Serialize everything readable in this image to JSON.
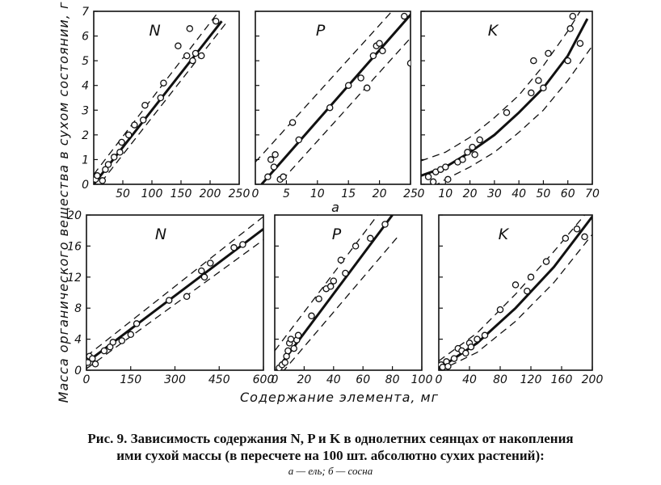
{
  "figure": {
    "ylabel": "Масса органического вещества в сухом состоянии, г",
    "xlabel": "Содержание элемента, мг",
    "row_labels": [
      "a"
    ]
  },
  "caption": {
    "line1": "Рис. 9. Зависимость содержания N, P и K в однолетних сеянцах от накопления",
    "line2": "ими сухой массы (в пересчете на 100 шт. абсолютно сухих растений):",
    "line3": "а — ель;  б — сосна"
  },
  "chart_data": [
    {
      "type": "scatter",
      "panel": "N",
      "row": "a",
      "xlim": [
        0,
        250
      ],
      "ylim": [
        0,
        7
      ],
      "xticks": [
        50,
        100,
        150,
        200,
        250
      ],
      "xtick_labels": [
        "50",
        "100",
        "150",
        "200",
        "250"
      ],
      "yticks": [
        0,
        1,
        2,
        3,
        4,
        5,
        6,
        7
      ],
      "points": [
        [
          3,
          0.2
        ],
        [
          6,
          0.35
        ],
        [
          15,
          0.15
        ],
        [
          20,
          0.6
        ],
        [
          25,
          0.8
        ],
        [
          35,
          1.1
        ],
        [
          45,
          1.3
        ],
        [
          48,
          1.7
        ],
        [
          60,
          2.0
        ],
        [
          70,
          2.4
        ],
        [
          85,
          2.6
        ],
        [
          88,
          3.2
        ],
        [
          115,
          3.5
        ],
        [
          120,
          4.1
        ],
        [
          145,
          5.6
        ],
        [
          160,
          5.2
        ],
        [
          165,
          6.3
        ],
        [
          170,
          5.0
        ],
        [
          175,
          5.3
        ],
        [
          185,
          5.2
        ],
        [
          210,
          6.6
        ]
      ],
      "fit": [
        [
          0,
          0
        ],
        [
          220,
          6.6
        ]
      ],
      "band": {
        "upper": [
          [
            0,
            0.4
          ],
          [
            215,
            7
          ]
        ],
        "lower": [
          [
            0,
            -0.3
          ],
          [
            230,
            6.6
          ]
        ]
      }
    },
    {
      "type": "scatter",
      "panel": "P",
      "row": "a",
      "xlim": [
        0,
        25
      ],
      "ylim": [
        0,
        7
      ],
      "xticks": [
        0,
        5,
        10,
        15,
        20,
        25
      ],
      "xtick_labels": [
        "0",
        "5",
        "10",
        "15",
        "20",
        "25"
      ],
      "yticks": [
        0,
        1,
        2,
        3,
        4,
        5,
        6,
        7
      ],
      "points": [
        [
          2,
          0.3
        ],
        [
          2.5,
          1.0
        ],
        [
          3,
          0.7
        ],
        [
          3.2,
          1.2
        ],
        [
          4,
          0.2
        ],
        [
          4.5,
          0.3
        ],
        [
          6,
          2.5
        ],
        [
          7,
          1.8
        ],
        [
          12,
          3.1
        ],
        [
          15,
          4.0
        ],
        [
          17,
          4.3
        ],
        [
          18,
          3.9
        ],
        [
          19,
          5.2
        ],
        [
          19.5,
          5.6
        ],
        [
          20,
          5.7
        ],
        [
          20.5,
          5.4
        ],
        [
          24,
          6.8
        ],
        [
          25,
          4.9
        ]
      ],
      "fit": [
        [
          1,
          0
        ],
        [
          25.5,
          7
        ]
      ],
      "band": {
        "upper": [
          [
            0,
            0.9
          ],
          [
            22,
            7
          ]
        ],
        "lower": [
          [
            3,
            -0.2
          ],
          [
            26,
            6.2
          ]
        ]
      }
    },
    {
      "type": "scatter",
      "panel": "K",
      "row": "a",
      "xlim": [
        0,
        70
      ],
      "ylim": [
        0,
        7
      ],
      "xticks": [
        0,
        10,
        20,
        30,
        40,
        50,
        60,
        70
      ],
      "xtick_labels": [
        "0",
        "10",
        "20",
        "30",
        "40",
        "50",
        "60",
        "70"
      ],
      "yticks": [
        0,
        1,
        2,
        3,
        4,
        5,
        6,
        7
      ],
      "points": [
        [
          3,
          0.3
        ],
        [
          5,
          0.1
        ],
        [
          6,
          0.5
        ],
        [
          8,
          0.6
        ],
        [
          10,
          0.7
        ],
        [
          11,
          0.2
        ],
        [
          15,
          0.9
        ],
        [
          17,
          1.0
        ],
        [
          19,
          1.3
        ],
        [
          21,
          1.5
        ],
        [
          22,
          1.2
        ],
        [
          24,
          1.8
        ],
        [
          35,
          2.9
        ],
        [
          45,
          3.7
        ],
        [
          46,
          5.0
        ],
        [
          48,
          4.2
        ],
        [
          50,
          3.9
        ],
        [
          52,
          5.3
        ],
        [
          60,
          5.0
        ],
        [
          61,
          6.3
        ],
        [
          62,
          6.8
        ],
        [
          65,
          5.7
        ]
      ],
      "fit": [
        [
          0,
          0.35
        ],
        [
          10,
          0.7
        ],
        [
          20,
          1.3
        ],
        [
          30,
          2.0
        ],
        [
          40,
          2.9
        ],
        [
          50,
          3.9
        ],
        [
          60,
          5.2
        ],
        [
          68,
          6.7
        ]
      ],
      "band": {
        "upper": [
          [
            0,
            0.95
          ],
          [
            10,
            1.3
          ],
          [
            20,
            1.9
          ],
          [
            30,
            2.7
          ],
          [
            40,
            3.6
          ],
          [
            50,
            4.8
          ],
          [
            60,
            6.2
          ],
          [
            65,
            7
          ]
        ],
        "lower": [
          [
            5,
            -0.1
          ],
          [
            10,
            0.2
          ],
          [
            20,
            0.7
          ],
          [
            30,
            1.3
          ],
          [
            40,
            2.1
          ],
          [
            50,
            3.0
          ],
          [
            60,
            4.2
          ],
          [
            70,
            5.6
          ]
        ]
      }
    },
    {
      "type": "scatter",
      "panel": "N",
      "row": "b",
      "xlim": [
        0,
        600
      ],
      "ylim": [
        0,
        20
      ],
      "xticks": [
        0,
        150,
        300,
        450,
        600
      ],
      "xtick_labels": [
        "0",
        "150",
        "300",
        "450",
        "600"
      ],
      "yticks": [
        0,
        4,
        8,
        12,
        16,
        20
      ],
      "points": [
        [
          5,
          1.0
        ],
        [
          10,
          1.8
        ],
        [
          20,
          1.5
        ],
        [
          30,
          0.8
        ],
        [
          60,
          2.5
        ],
        [
          80,
          3.0
        ],
        [
          90,
          3.6
        ],
        [
          120,
          3.8
        ],
        [
          150,
          4.6
        ],
        [
          170,
          6.0
        ],
        [
          280,
          9.0
        ],
        [
          340,
          9.5
        ],
        [
          390,
          12.8
        ],
        [
          400,
          12.0
        ],
        [
          420,
          13.8
        ],
        [
          500,
          15.8
        ],
        [
          530,
          16.2
        ]
      ],
      "fit": [
        [
          0,
          1.0
        ],
        [
          600,
          18.2
        ]
      ],
      "band": {
        "upper": [
          [
            0,
            1.8
          ],
          [
            600,
            19.8
          ]
        ],
        "lower": [
          [
            0,
            0.2
          ],
          [
            600,
            16.8
          ]
        ]
      }
    },
    {
      "type": "scatter",
      "panel": "P",
      "row": "b",
      "xlim": [
        0,
        100
      ],
      "ylim": [
        0,
        20
      ],
      "xticks": [
        0,
        20,
        40,
        60,
        80,
        100
      ],
      "xtick_labels": [
        "0",
        "20",
        "40",
        "60",
        "80",
        "100"
      ],
      "yticks": [
        0,
        4,
        8,
        12,
        16,
        20
      ],
      "points": [
        [
          3,
          0.3
        ],
        [
          5,
          0.7
        ],
        [
          7,
          1.0
        ],
        [
          8,
          1.8
        ],
        [
          9,
          2.5
        ],
        [
          10,
          3.5
        ],
        [
          11,
          4.0
        ],
        [
          13,
          2.8
        ],
        [
          15,
          3.9
        ],
        [
          16,
          4.5
        ],
        [
          25,
          7.0
        ],
        [
          30,
          9.2
        ],
        [
          35,
          10.5
        ],
        [
          38,
          10.8
        ],
        [
          40,
          11.5
        ],
        [
          45,
          14.2
        ],
        [
          48,
          12.5
        ],
        [
          55,
          16.0
        ],
        [
          65,
          17.0
        ],
        [
          75,
          18.8
        ]
      ],
      "fit": [
        [
          0,
          -0.3
        ],
        [
          80,
          20
        ]
      ],
      "band": {
        "upper": [
          [
            0,
            2.5
          ],
          [
            70,
            20
          ]
        ],
        "lower": [
          [
            5,
            -0.3
          ],
          [
            85,
            17.5
          ]
        ]
      }
    },
    {
      "type": "scatter",
      "panel": "K",
      "row": "b",
      "xlim": [
        0,
        200
      ],
      "ylim": [
        0,
        20
      ],
      "xticks": [
        0,
        40,
        80,
        120,
        160,
        200
      ],
      "xtick_labels": [
        "0",
        "40",
        "80",
        "120",
        "160",
        "200"
      ],
      "yticks": [
        0,
        4,
        8,
        12,
        16,
        20
      ],
      "points": [
        [
          3,
          0.7
        ],
        [
          5,
          0.4
        ],
        [
          10,
          1.1
        ],
        [
          12,
          0.5
        ],
        [
          20,
          1.5
        ],
        [
          25,
          2.8
        ],
        [
          30,
          2.5
        ],
        [
          35,
          2.2
        ],
        [
          40,
          3.5
        ],
        [
          42,
          3.0
        ],
        [
          50,
          4.0
        ],
        [
          60,
          4.5
        ],
        [
          80,
          7.8
        ],
        [
          100,
          11.0
        ],
        [
          115,
          10.2
        ],
        [
          120,
          12.0
        ],
        [
          140,
          14.0
        ],
        [
          165,
          17.0
        ],
        [
          180,
          18.2
        ],
        [
          190,
          17.2
        ]
      ],
      "fit": [
        [
          0,
          0.2
        ],
        [
          50,
          3.5
        ],
        [
          100,
          8.0
        ],
        [
          150,
          13.3
        ],
        [
          200,
          19.8
        ]
      ],
      "band": {
        "upper": [
          [
            0,
            1.2
          ],
          [
            50,
            4.8
          ],
          [
            100,
            9.8
          ],
          [
            150,
            15.3
          ],
          [
            190,
            20
          ]
        ],
        "lower": [
          [
            0,
            -0.1
          ],
          [
            50,
            2.3
          ],
          [
            100,
            6.3
          ],
          [
            150,
            11.3
          ],
          [
            200,
            17.5
          ]
        ]
      }
    }
  ]
}
